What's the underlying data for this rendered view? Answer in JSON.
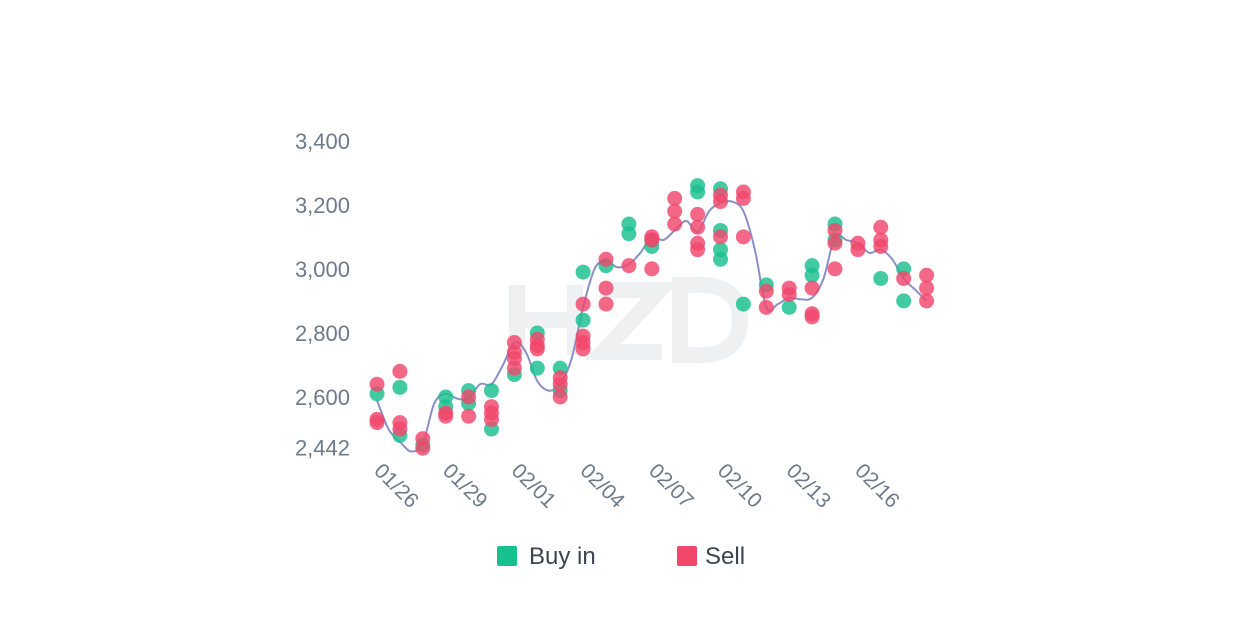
{
  "chart_data": {
    "type": "scatter",
    "x_labels": [
      "01/26",
      "01/29",
      "02/01",
      "02/04",
      "02/07",
      "02/10",
      "02/13",
      "02/16"
    ],
    "y_ticks": [
      2442,
      2600,
      2800,
      3000,
      3200,
      3400
    ],
    "y_tick_labels": [
      "2,442",
      "2,600",
      "2,800",
      "3,000",
      "3,200",
      "3,400"
    ],
    "ylim": [
      2442,
      3400
    ],
    "legend": {
      "position": "bottom",
      "entries": [
        "Buy in",
        "Sell"
      ]
    },
    "colors": {
      "buy": "#18c08f",
      "sell": "#f0476b",
      "line": "#8a8fc8"
    },
    "watermark": "HZD",
    "trend_line": [
      [
        0,
        2590
      ],
      [
        0.5,
        2500
      ],
      [
        1,
        2460
      ],
      [
        1.5,
        2430
      ],
      [
        2,
        2455
      ],
      [
        2.5,
        2580
      ],
      [
        3,
        2610
      ],
      [
        3.5,
        2595
      ],
      [
        4,
        2595
      ],
      [
        4.5,
        2640
      ],
      [
        5,
        2640
      ],
      [
        5.5,
        2700
      ],
      [
        6,
        2770
      ],
      [
        6.5,
        2740
      ],
      [
        7,
        2650
      ],
      [
        7.5,
        2620
      ],
      [
        8,
        2640
      ],
      [
        8.5,
        2720
      ],
      [
        9,
        2880
      ],
      [
        9.5,
        3000
      ],
      [
        10,
        3025
      ],
      [
        10.5,
        3005
      ],
      [
        11,
        3015
      ],
      [
        11.5,
        3050
      ],
      [
        12,
        3100
      ],
      [
        12.5,
        3090
      ],
      [
        13,
        3120
      ],
      [
        13.5,
        3150
      ],
      [
        14,
        3115
      ],
      [
        14.5,
        3180
      ],
      [
        15,
        3205
      ],
      [
        15.5,
        3210
      ],
      [
        16,
        3180
      ],
      [
        16.5,
        3060
      ],
      [
        17,
        2880
      ],
      [
        17.5,
        2890
      ],
      [
        18,
        2910
      ],
      [
        18.5,
        2905
      ],
      [
        19,
        2910
      ],
      [
        19.5,
        2970
      ],
      [
        20,
        3100
      ],
      [
        20.5,
        3090
      ],
      [
        21,
        3080
      ],
      [
        21.5,
        3050
      ],
      [
        22,
        3060
      ],
      [
        22.5,
        3030
      ],
      [
        23,
        2970
      ],
      [
        23.5,
        2935
      ],
      [
        24,
        2900
      ]
    ],
    "series": [
      {
        "name": "Buy in",
        "points": [
          [
            0,
            2610
          ],
          [
            1,
            2480
          ],
          [
            1,
            2630
          ],
          [
            2,
            2450
          ],
          [
            3,
            2600
          ],
          [
            3,
            2570
          ],
          [
            4,
            2620
          ],
          [
            4,
            2580
          ],
          [
            5,
            2620
          ],
          [
            5,
            2500
          ],
          [
            6,
            2670
          ],
          [
            7,
            2690
          ],
          [
            7,
            2800
          ],
          [
            8,
            2690
          ],
          [
            8,
            2620
          ],
          [
            9,
            2840
          ],
          [
            9,
            2990
          ],
          [
            10,
            3010
          ],
          [
            11,
            3110
          ],
          [
            11,
            3140
          ],
          [
            12,
            3090
          ],
          [
            12,
            3070
          ],
          [
            14,
            3260
          ],
          [
            14,
            3240
          ],
          [
            15,
            3250
          ],
          [
            15,
            3120
          ],
          [
            15,
            3060
          ],
          [
            15,
            3030
          ],
          [
            16,
            2890
          ],
          [
            17,
            2950
          ],
          [
            18,
            2880
          ],
          [
            19,
            2980
          ],
          [
            19,
            3010
          ],
          [
            20,
            3140
          ],
          [
            20,
            3090
          ],
          [
            22,
            2970
          ],
          [
            23,
            3000
          ],
          [
            23,
            2900
          ]
        ]
      },
      {
        "name": "Sell",
        "points": [
          [
            0,
            2640
          ],
          [
            0,
            2530
          ],
          [
            0,
            2520
          ],
          [
            1,
            2680
          ],
          [
            1,
            2520
          ],
          [
            1,
            2500
          ],
          [
            2,
            2470
          ],
          [
            2,
            2440
          ],
          [
            3,
            2550
          ],
          [
            3,
            2540
          ],
          [
            4,
            2600
          ],
          [
            4,
            2540
          ],
          [
            5,
            2570
          ],
          [
            5,
            2550
          ],
          [
            5,
            2530
          ],
          [
            6,
            2770
          ],
          [
            6,
            2740
          ],
          [
            6,
            2720
          ],
          [
            6,
            2690
          ],
          [
            7,
            2780
          ],
          [
            7,
            2760
          ],
          [
            7,
            2750
          ],
          [
            8,
            2660
          ],
          [
            8,
            2640
          ],
          [
            8,
            2600
          ],
          [
            9,
            2890
          ],
          [
            9,
            2790
          ],
          [
            9,
            2770
          ],
          [
            9,
            2750
          ],
          [
            10,
            3030
          ],
          [
            10,
            2940
          ],
          [
            10,
            2890
          ],
          [
            11,
            3010
          ],
          [
            12,
            3090
          ],
          [
            12,
            3100
          ],
          [
            12,
            3000
          ],
          [
            13,
            3220
          ],
          [
            13,
            3180
          ],
          [
            13,
            3140
          ],
          [
            14,
            3170
          ],
          [
            14,
            3130
          ],
          [
            14,
            3080
          ],
          [
            14,
            3060
          ],
          [
            15,
            3230
          ],
          [
            15,
            3210
          ],
          [
            15,
            3100
          ],
          [
            16,
            3240
          ],
          [
            16,
            3220
          ],
          [
            16,
            3100
          ],
          [
            17,
            2930
          ],
          [
            17,
            2880
          ],
          [
            18,
            2940
          ],
          [
            18,
            2920
          ],
          [
            19,
            2940
          ],
          [
            19,
            2860
          ],
          [
            19,
            2850
          ],
          [
            20,
            3120
          ],
          [
            20,
            3080
          ],
          [
            20,
            3000
          ],
          [
            21,
            3080
          ],
          [
            21,
            3060
          ],
          [
            22,
            3130
          ],
          [
            22,
            3090
          ],
          [
            22,
            3070
          ],
          [
            23,
            2970
          ],
          [
            24,
            2980
          ],
          [
            24,
            2940
          ],
          [
            24,
            2900
          ]
        ]
      }
    ]
  }
}
